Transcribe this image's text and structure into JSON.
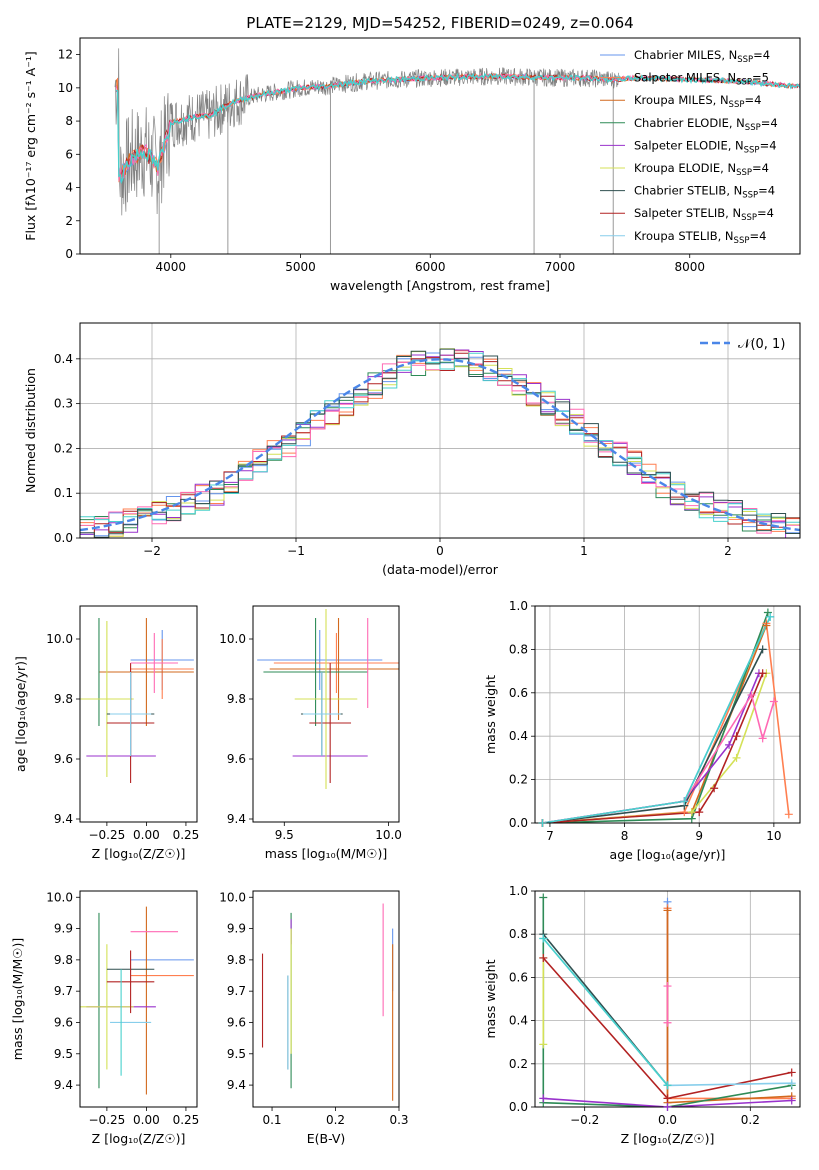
{
  "figure_title": "PLATE=2129, MJD=54252, FIBERID=0249, z=0.064",
  "colors": {
    "Chabrier MILES": "#6495ed",
    "Salpeter MILES": "#ff7f50",
    "Kroupa MILES": "#d2691e",
    "Chabrier ELODIE": "#2e8b57",
    "Salpeter ELODIE": "#9932cc",
    "Kroupa ELODIE": "#d4e157",
    "Chabrier STELIB": "#2f4f4f",
    "Salpeter STELIB": "#b22222",
    "Kroupa STELIB": "#87ceeb",
    "pink": "#ff69b4",
    "teal": "#48d1cc",
    "data": "#808080",
    "gauss": "#4a86e8"
  },
  "chart_data": [
    {
      "id": "spectrum",
      "type": "line",
      "title": "PLATE=2129, MJD=54252, FIBERID=0249, z=0.064",
      "xlabel": "wavelength [Angstrom, rest frame]",
      "ylabel": "Flux [fλ10⁻¹⁷ erg cm⁻² s⁻¹ A⁻¹]",
      "xlim": [
        3300,
        8850
      ],
      "ylim": [
        0,
        13
      ],
      "xticks": [
        4000,
        5000,
        6000,
        7000,
        8000
      ],
      "yticks": [
        0,
        2,
        4,
        6,
        8,
        10,
        12
      ],
      "legend_position": "upper right",
      "legend": [
        {
          "name": "Chabrier MILES, N",
          "sub": "SSP",
          "suffix": "=4",
          "color": "#6495ed"
        },
        {
          "name": "Salpeter MILES, N",
          "sub": "SSP",
          "suffix": "=5",
          "color": "#ff7f50"
        },
        {
          "name": "Kroupa MILES, N",
          "sub": "SSP",
          "suffix": "=4",
          "color": "#d2691e"
        },
        {
          "name": "Chabrier ELODIE, N",
          "sub": "SSP",
          "suffix": "=4",
          "color": "#2e8b57"
        },
        {
          "name": "Salpeter ELODIE, N",
          "sub": "SSP",
          "suffix": "=4",
          "color": "#9932cc"
        },
        {
          "name": "Kroupa ELODIE, N",
          "sub": "SSP",
          "suffix": "=4",
          "color": "#d4e157"
        },
        {
          "name": "Chabrier STELIB, N",
          "sub": "SSP",
          "suffix": "=4",
          "color": "#2f4f4f"
        },
        {
          "name": "Salpeter STELIB, N",
          "sub": "SSP",
          "suffix": "=4",
          "color": "#b22222"
        },
        {
          "name": "Kroupa STELIB, N",
          "sub": "SSP",
          "suffix": "=4",
          "color": "#87ceeb"
        }
      ],
      "continuum": {
        "wavelength": [
          3600,
          3700,
          3800,
          3900,
          4000,
          4100,
          4200,
          4300,
          4400,
          4500,
          4700,
          5000,
          5200,
          5500,
          6000,
          6500,
          7000,
          7200,
          7400,
          7600,
          8000,
          8400,
          8800
        ],
        "flux": [
          4.6,
          5.8,
          6.2,
          5.2,
          7.9,
          8.1,
          8.3,
          8.3,
          8.8,
          9.2,
          9.6,
          10.0,
          10.1,
          10.4,
          10.6,
          10.7,
          10.6,
          10.6,
          10.5,
          10.6,
          10.5,
          10.4,
          10.1
        ]
      },
      "spikes_down": [
        [
          3910,
          0
        ],
        [
          4440,
          0
        ],
        [
          5230,
          0
        ],
        [
          6800,
          0
        ],
        [
          7410,
          0
        ]
      ]
    },
    {
      "id": "residuals",
      "type": "histogram",
      "xlabel": "(data-model)/error",
      "ylabel": "Normed distribution",
      "xlim": [
        -2.5,
        2.5
      ],
      "ylim": [
        0,
        0.48
      ],
      "xticks": [
        -2,
        -1,
        0,
        1,
        2
      ],
      "yticks": [
        0.0,
        0.1,
        0.2,
        0.3,
        0.4
      ],
      "legend": [
        "𝒩(0, 1)"
      ],
      "bins": [
        -2.5,
        -2.4,
        -2.3,
        -2.2,
        -2.1,
        -2.0,
        -1.9,
        -1.8,
        -1.7,
        -1.6,
        -1.5,
        -1.4,
        -1.3,
        -1.2,
        -1.1,
        -1.0,
        -0.9,
        -0.8,
        -0.7,
        -0.6,
        -0.5,
        -0.4,
        -0.3,
        -0.2,
        -0.1,
        0.0,
        0.1,
        0.2,
        0.3,
        0.4,
        0.5,
        0.6,
        0.7,
        0.8,
        0.9,
        1.0,
        1.1,
        1.2,
        1.3,
        1.4,
        1.5,
        1.6,
        1.7,
        1.8,
        1.9,
        2.0,
        2.1,
        2.2,
        2.3,
        2.4
      ],
      "densities": [
        0.018,
        0.022,
        0.03,
        0.038,
        0.045,
        0.055,
        0.065,
        0.075,
        0.09,
        0.1,
        0.12,
        0.145,
        0.17,
        0.19,
        0.21,
        0.235,
        0.26,
        0.28,
        0.3,
        0.32,
        0.34,
        0.36,
        0.38,
        0.39,
        0.395,
        0.4,
        0.395,
        0.39,
        0.38,
        0.36,
        0.34,
        0.32,
        0.3,
        0.28,
        0.26,
        0.235,
        0.21,
        0.19,
        0.17,
        0.145,
        0.12,
        0.1,
        0.09,
        0.075,
        0.065,
        0.055,
        0.045,
        0.038,
        0.03,
        0.022
      ]
    },
    {
      "id": "age_vs_Z",
      "type": "errorbar",
      "xlabel": "Z [log₁₀(Z/Z☉)]",
      "ylabel": "age  [log₁₀(age/yr)]",
      "xlim": [
        -0.42,
        0.32
      ],
      "ylim": [
        9.39,
        10.11
      ],
      "xticks": [
        -0.25,
        0.0,
        0.25
      ],
      "yticks": [
        9.4,
        9.6,
        9.8,
        10.0
      ],
      "points": [
        {
          "c": "Chabrier MILES",
          "x": 0.1,
          "xe": 0.2,
          "y": 9.93,
          "ye": 0.1
        },
        {
          "c": "Salpeter MILES",
          "x": 0.1,
          "xe": 0.2,
          "y": 9.9,
          "ye": 0.1
        },
        {
          "c": "Kroupa MILES",
          "x": 0.0,
          "xe": 0.3,
          "y": 9.89,
          "ye": 0.18
        },
        {
          "c": "Chabrier ELODIE",
          "x": -0.3,
          "xe": 0.0,
          "y": 9.89,
          "ye": 0.18
        },
        {
          "c": "Salpeter ELODIE",
          "x": -0.16,
          "xe": 0.22,
          "y": 9.61,
          "ye": 0.0
        },
        {
          "c": "Kroupa ELODIE",
          "x": -0.25,
          "xe": 0.17,
          "y": 9.8,
          "ye": 0.26
        },
        {
          "c": "Chabrier STELIB",
          "x": -0.1,
          "xe": 0.15,
          "y": 9.75,
          "ye": 0.14
        },
        {
          "c": "Salpeter STELIB",
          "x": -0.1,
          "xe": 0.15,
          "y": 9.72,
          "ye": 0.2
        },
        {
          "c": "Kroupa STELIB",
          "x": -0.1,
          "xe": 0.13,
          "y": 9.75,
          "ye": 0.14
        },
        {
          "c": "pink",
          "x": 0.05,
          "xe": 0.15,
          "y": 9.92,
          "ye": 0.1
        }
      ]
    },
    {
      "id": "age_vs_mass",
      "type": "errorbar",
      "xlabel": "mass [log₁₀(M/M☉)]",
      "ylabel": "",
      "xlim": [
        9.35,
        10.05
      ],
      "ylim": [
        9.39,
        10.11
      ],
      "xticks": [
        9.5,
        10.0
      ],
      "yticks": [
        9.4,
        9.6,
        9.8,
        10.0
      ],
      "points": [
        {
          "c": "Chabrier MILES",
          "x": 9.67,
          "xe": 0.3,
          "y": 9.93,
          "ye": 0.1
        },
        {
          "c": "Salpeter MILES",
          "x": 9.75,
          "xe": 0.3,
          "y": 9.92,
          "ye": 0.1
        },
        {
          "c": "Kroupa MILES",
          "x": 9.76,
          "xe": 0.33,
          "y": 9.9,
          "ye": 0.17
        },
        {
          "c": "Chabrier ELODIE",
          "x": 9.65,
          "xe": 0.25,
          "y": 9.89,
          "ye": 0.18
        },
        {
          "c": "Salpeter ELODIE",
          "x": 9.72,
          "xe": 0.18,
          "y": 9.61,
          "ye": 0.0
        },
        {
          "c": "Kroupa ELODIE",
          "x": 9.7,
          "xe": 0.15,
          "y": 9.8,
          "ye": 0.3
        },
        {
          "c": "Chabrier STELIB",
          "x": 9.68,
          "xe": 0.1,
          "y": 9.75,
          "ye": 0.14
        },
        {
          "c": "Salpeter STELIB",
          "x": 9.72,
          "xe": 0.1,
          "y": 9.72,
          "ye": 0.2
        },
        {
          "c": "Kroupa STELIB",
          "x": 9.68,
          "xe": 0.09,
          "y": 9.75,
          "ye": 0.14
        },
        {
          "c": "pink",
          "x": 9.9,
          "xe": 0.0,
          "y": 9.92,
          "ye": 0.15
        }
      ]
    },
    {
      "id": "mass_weight_vs_age",
      "type": "line",
      "xlabel": "age  [log₁₀(age/yr)]",
      "ylabel": "mass weight",
      "xlim": [
        6.8,
        10.35
      ],
      "ylim": [
        0,
        1
      ],
      "xticks": [
        7,
        8,
        9,
        10
      ],
      "yticks": [
        0.0,
        0.2,
        0.4,
        0.6,
        0.8,
        1.0
      ],
      "series": [
        {
          "c": "Chabrier MILES",
          "x": [
            6.9,
            8.8,
            9.95
          ],
          "y": [
            0.0,
            0.1,
            0.95
          ]
        },
        {
          "c": "Salpeter MILES",
          "x": [
            6.9,
            8.8,
            9.9,
            10.2
          ],
          "y": [
            0.0,
            0.05,
            0.92,
            0.04
          ]
        },
        {
          "c": "Kroupa MILES",
          "x": [
            6.9,
            8.9,
            9.9
          ],
          "y": [
            0.0,
            0.05,
            0.91
          ]
        },
        {
          "c": "Chabrier ELODIE",
          "x": [
            6.9,
            8.9,
            9.92
          ],
          "y": [
            0.0,
            0.02,
            0.97
          ]
        },
        {
          "c": "Salpeter ELODIE",
          "x": [
            6.9,
            8.8,
            9.4,
            9.8
          ],
          "y": [
            0.0,
            0.1,
            0.36,
            0.69
          ]
        },
        {
          "c": "Kroupa ELODIE",
          "x": [
            6.9,
            8.9,
            9.5,
            9.9
          ],
          "y": [
            0.0,
            0.05,
            0.3,
            0.69
          ]
        },
        {
          "c": "Chabrier STELIB",
          "x": [
            6.9,
            8.8,
            9.85
          ],
          "y": [
            0.0,
            0.08,
            0.8
          ]
        },
        {
          "c": "Salpeter STELIB",
          "x": [
            6.9,
            9.0,
            9.2,
            9.5,
            9.85
          ],
          "y": [
            0.0,
            0.05,
            0.16,
            0.4,
            0.69
          ]
        },
        {
          "c": "pink",
          "x": [
            6.9,
            8.8,
            9.7,
            9.85,
            10.0
          ],
          "y": [
            0.0,
            0.1,
            0.59,
            0.39,
            0.56
          ]
        },
        {
          "c": "teal",
          "x": [
            6.9,
            8.8,
            9.95
          ],
          "y": [
            0.0,
            0.1,
            0.95
          ]
        }
      ]
    },
    {
      "id": "mass_vs_Z",
      "type": "errorbar",
      "xlabel": "Z [log₁₀(Z/Z☉)]",
      "ylabel": "mass [log₁₀(M/M☉)]",
      "xlim": [
        -0.42,
        0.32
      ],
      "ylim": [
        9.33,
        10.02
      ],
      "xticks": [
        -0.25,
        0.0,
        0.25
      ],
      "yticks": [
        9.4,
        9.5,
        9.6,
        9.7,
        9.8,
        9.9,
        10.0
      ],
      "points": [
        {
          "c": "Chabrier MILES",
          "x": 0.1,
          "xe": 0.2,
          "y": 9.8,
          "ye": 0.0
        },
        {
          "c": "Salpeter MILES",
          "x": 0.1,
          "xe": 0.2,
          "y": 9.75,
          "ye": 0.0
        },
        {
          "c": "Kroupa MILES",
          "x": 0.0,
          "xe": 0.0,
          "y": 9.67,
          "ye": 0.3
        },
        {
          "c": "Chabrier ELODIE",
          "x": -0.3,
          "xe": 0.0,
          "y": 9.67,
          "ye": 0.28
        },
        {
          "c": "Salpeter ELODIE",
          "x": -0.16,
          "xe": 0.22,
          "y": 9.65,
          "ye": 0.0
        },
        {
          "c": "Kroupa ELODIE",
          "x": -0.25,
          "xe": 0.17,
          "y": 9.65,
          "ye": 0.2
        },
        {
          "c": "Chabrier STELIB",
          "x": -0.1,
          "xe": 0.15,
          "y": 9.77,
          "ye": 0.0
        },
        {
          "c": "Salpeter STELIB",
          "x": -0.1,
          "xe": 0.15,
          "y": 9.73,
          "ye": 0.1
        },
        {
          "c": "Kroupa STELIB",
          "x": -0.1,
          "xe": 0.13,
          "y": 9.6,
          "ye": 0.0
        },
        {
          "c": "pink",
          "x": 0.05,
          "xe": 0.15,
          "y": 9.89,
          "ye": 0.0
        },
        {
          "c": "teal",
          "x": -0.16,
          "xe": 0.0,
          "y": 9.6,
          "ye": 0.17
        }
      ]
    },
    {
      "id": "mass_vs_ebv",
      "type": "errorbar",
      "xlabel": "E(B-V)",
      "ylabel": "",
      "xlim": [
        0.07,
        0.3
      ],
      "ylim": [
        9.33,
        10.02
      ],
      "xticks": [
        0.1,
        0.2,
        0.3
      ],
      "yticks": [
        9.4,
        9.5,
        9.6,
        9.7,
        9.8,
        9.9,
        10.0
      ],
      "points": [
        {
          "c": "Chabrier MILES",
          "x": 0.29,
          "xe": 0.0,
          "y": 9.8,
          "ye": 0.1
        },
        {
          "c": "Kroupa MILES",
          "x": 0.29,
          "xe": 0.0,
          "y": 9.6,
          "ye": 0.25
        },
        {
          "c": "Chabrier ELODIE",
          "x": 0.13,
          "xe": 0.0,
          "y": 9.67,
          "ye": 0.28
        },
        {
          "c": "Salpeter ELODIE",
          "x": 0.13,
          "xe": 0.0,
          "y": 9.89,
          "ye": 0.04
        },
        {
          "c": "Kroupa ELODIE",
          "x": 0.13,
          "xe": 0.0,
          "y": 9.7,
          "ye": 0.2
        },
        {
          "c": "Chabrier STELIB",
          "x": 0.125,
          "xe": 0.0,
          "y": 9.6,
          "ye": 0.15
        },
        {
          "c": "Salpeter STELIB",
          "x": 0.085,
          "xe": 0.0,
          "y": 9.67,
          "ye": 0.15
        },
        {
          "c": "Kroupa STELIB",
          "x": 0.125,
          "xe": 0.0,
          "y": 9.6,
          "ye": 0.15
        },
        {
          "c": "pink",
          "x": 0.275,
          "xe": 0.0,
          "y": 9.8,
          "ye": 0.18
        }
      ]
    },
    {
      "id": "mass_weight_vs_Z",
      "type": "line",
      "xlabel": "Z [log₁₀(Z/Z☉)]",
      "ylabel": "mass weight",
      "xlim": [
        -0.32,
        0.32
      ],
      "ylim": [
        0,
        1
      ],
      "xticks": [
        -0.2,
        0.0,
        0.2
      ],
      "yticks": [
        0.0,
        0.2,
        0.4,
        0.6,
        0.8,
        1.0
      ],
      "series": [
        {
          "c": "Chabrier MILES",
          "x": [
            0.0,
            0.0
          ],
          "y": [
            0.95,
            0.1
          ]
        },
        {
          "c": "Salpeter MILES",
          "x": [
            0.0,
            0.0,
            0.3
          ],
          "y": [
            0.92,
            0.04,
            0.04
          ]
        },
        {
          "c": "Kroupa MILES",
          "x": [
            0.0,
            0.0,
            0.3
          ],
          "y": [
            0.91,
            0.02,
            0.05
          ]
        },
        {
          "c": "Chabrier ELODIE",
          "x": [
            -0.3,
            -0.3,
            0.0,
            0.3
          ],
          "y": [
            0.97,
            0.02,
            0.0,
            0.1
          ]
        },
        {
          "c": "Salpeter ELODIE",
          "x": [
            -0.3,
            0.0,
            0.3
          ],
          "y": [
            0.04,
            0.0,
            0.03
          ]
        },
        {
          "c": "Kroupa ELODIE",
          "x": [
            -0.3,
            -0.3
          ],
          "y": [
            0.69,
            0.29
          ]
        },
        {
          "c": "Chabrier STELIB",
          "x": [
            -0.3,
            0.0
          ],
          "y": [
            0.8,
            0.1
          ]
        },
        {
          "c": "Salpeter STELIB",
          "x": [
            -0.3,
            0.0,
            0.3
          ],
          "y": [
            0.69,
            0.04,
            0.16
          ]
        },
        {
          "c": "Kroupa STELIB",
          "x": [
            -0.3,
            0.0,
            0.3
          ],
          "y": [
            0.78,
            0.1,
            0.11
          ]
        },
        {
          "c": "pink",
          "x": [
            0.0,
            0.0
          ],
          "y": [
            0.56,
            0.39
          ]
        },
        {
          "c": "teal",
          "x": [
            -0.3,
            0.0
          ],
          "y": [
            0.78,
            0.1
          ]
        }
      ]
    }
  ]
}
